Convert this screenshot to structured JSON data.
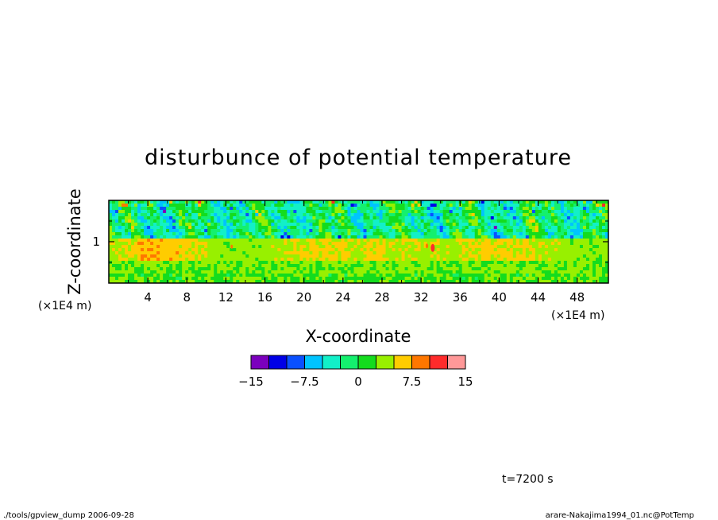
{
  "chart_data": {
    "type": "heatmap",
    "title": "disturbunce of potential temperature",
    "xlabel": "X-coordinate",
    "ylabel": "Z-coordinate",
    "x_unit": "(×1E4 m)",
    "y_unit": "(×1E4 m)",
    "x_ticks": [
      4,
      8,
      12,
      16,
      20,
      24,
      28,
      32,
      36,
      40,
      44,
      48
    ],
    "xlim": [
      0,
      51.2
    ],
    "y_ticks": [
      1
    ],
    "ylim": [
      0,
      2
    ],
    "grid": false,
    "colorbar": {
      "levels": [
        -15,
        -12.5,
        -10,
        -7.5,
        -5,
        -2.5,
        0,
        2.5,
        5,
        7.5,
        10,
        12.5,
        15
      ],
      "colors": [
        "#7b00bd",
        "#0000e6",
        "#0a50ff",
        "#00c4ff",
        "#12f0c8",
        "#14f06e",
        "#14dc1e",
        "#98f000",
        "#ffcc00",
        "#ff7700",
        "#ff2b2b",
        "#ff9898"
      ],
      "tick_labels": [
        "−15",
        "−7.5",
        "0",
        "7.5",
        "15"
      ],
      "tick_values": [
        -15,
        -7.5,
        0,
        7.5,
        15
      ]
    },
    "field_description_levels": {
      "top_layer_z": [
        1.1,
        2.0
      ],
      "mid_layer_z": [
        0.5,
        1.05
      ],
      "bottom_layer_z": [
        0,
        0.5
      ]
    },
    "annotation": "t=7200 s"
  },
  "footer": {
    "left": "./tools/gpview_dump  2006-09-28",
    "right": "arare-Nakajima1994_01.nc@PotTemp"
  },
  "colors": {
    "axis": "#000000",
    "background": "#ffffff"
  }
}
